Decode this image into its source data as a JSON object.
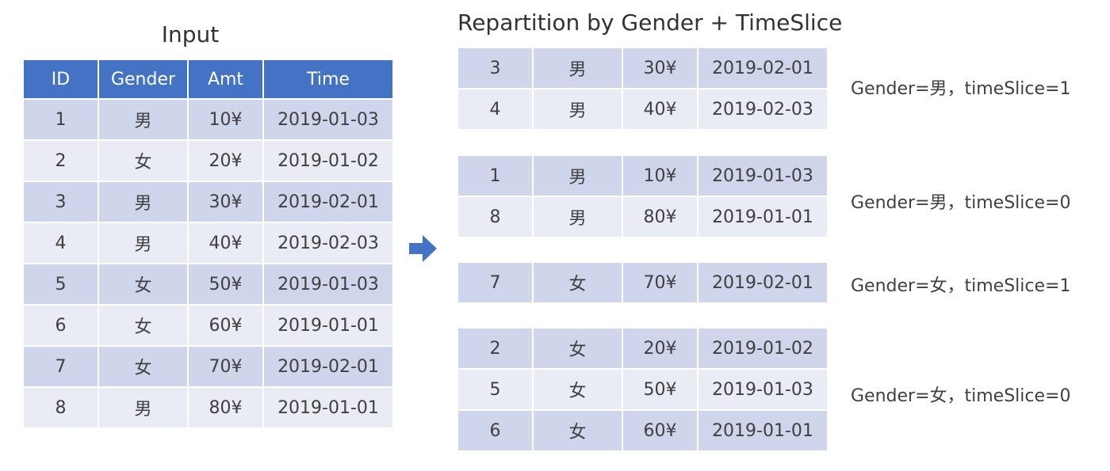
{
  "input": {
    "title": "Input",
    "headers": [
      "ID",
      "Gender",
      "Amt",
      "Time"
    ],
    "rows": [
      [
        "1",
        "男",
        "10¥",
        "2019-01-03"
      ],
      [
        "2",
        "女",
        "20¥",
        "2019-01-02"
      ],
      [
        "3",
        "男",
        "30¥",
        "2019-02-01"
      ],
      [
        "4",
        "男",
        "40¥",
        "2019-02-03"
      ],
      [
        "5",
        "女",
        "50¥",
        "2019-01-03"
      ],
      [
        "6",
        "女",
        "60¥",
        "2019-01-01"
      ],
      [
        "7",
        "女",
        "70¥",
        "2019-02-01"
      ],
      [
        "8",
        "男",
        "80¥",
        "2019-01-01"
      ]
    ]
  },
  "output": {
    "title": "Repartition by Gender + TimeSlice",
    "groups": [
      {
        "label": "Gender=男，timeSlice=1",
        "rows": [
          [
            "3",
            "男",
            "30¥",
            "2019-02-01"
          ],
          [
            "4",
            "男",
            "40¥",
            "2019-02-03"
          ]
        ]
      },
      {
        "label": "Gender=男，timeSlice=0",
        "rows": [
          [
            "1",
            "男",
            "10¥",
            "2019-01-03"
          ],
          [
            "8",
            "男",
            "80¥",
            "2019-01-01"
          ]
        ]
      },
      {
        "label": "Gender=女，timeSlice=1",
        "rows": [
          [
            "7",
            "女",
            "70¥",
            "2019-02-01"
          ]
        ]
      },
      {
        "label": "Gender=女，timeSlice=0",
        "rows": [
          [
            "2",
            "女",
            "20¥",
            "2019-01-02"
          ],
          [
            "5",
            "女",
            "50¥",
            "2019-01-03"
          ],
          [
            "6",
            "女",
            "60¥",
            "2019-01-01"
          ]
        ]
      }
    ]
  },
  "colors": {
    "header": "#4472c4",
    "row_dark": "#cfd5ea",
    "row_light": "#e9ebf5",
    "arrow": "#4472c4"
  },
  "icons": {
    "arrow": "right-arrow-icon"
  }
}
